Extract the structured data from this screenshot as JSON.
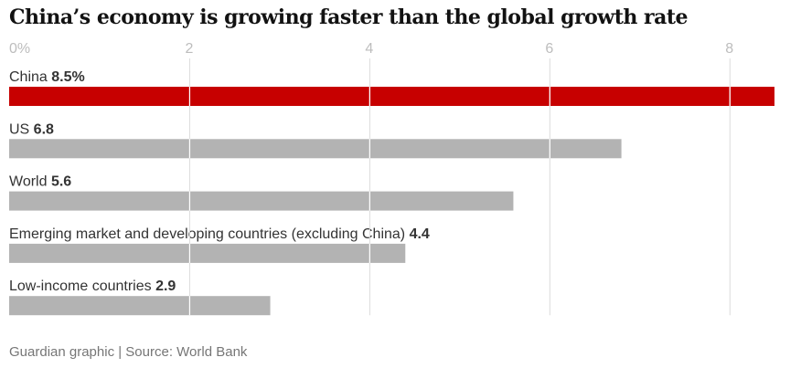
{
  "chart_data": {
    "type": "bar",
    "orientation": "horizontal",
    "title": "China’s economy is growing faster than the global growth rate",
    "x_ticks": [
      {
        "value": 0,
        "label": "0%"
      },
      {
        "value": 2,
        "label": "2"
      },
      {
        "value": 4,
        "label": "4"
      },
      {
        "value": 6,
        "label": "6"
      },
      {
        "value": 8,
        "label": "8"
      }
    ],
    "xlim": [
      0,
      8.5
    ],
    "grid": true,
    "categories": [
      "China",
      "US",
      "World",
      "Emerging market and developing countries (excluding China)",
      "Low-income countries"
    ],
    "values": [
      8.5,
      6.8,
      5.6,
      4.4,
      2.9
    ],
    "value_labels": [
      "8.5%",
      "6.8",
      "5.6",
      "4.4",
      "2.9"
    ],
    "colors": [
      "#c70000",
      "#b3b3b3",
      "#b3b3b3",
      "#b3b3b3",
      "#b3b3b3"
    ],
    "label_colors": [
      "#333333",
      "#333333",
      "#333333",
      "#333333",
      "#333333"
    ]
  },
  "source": "Guardian graphic | Source: World Bank"
}
